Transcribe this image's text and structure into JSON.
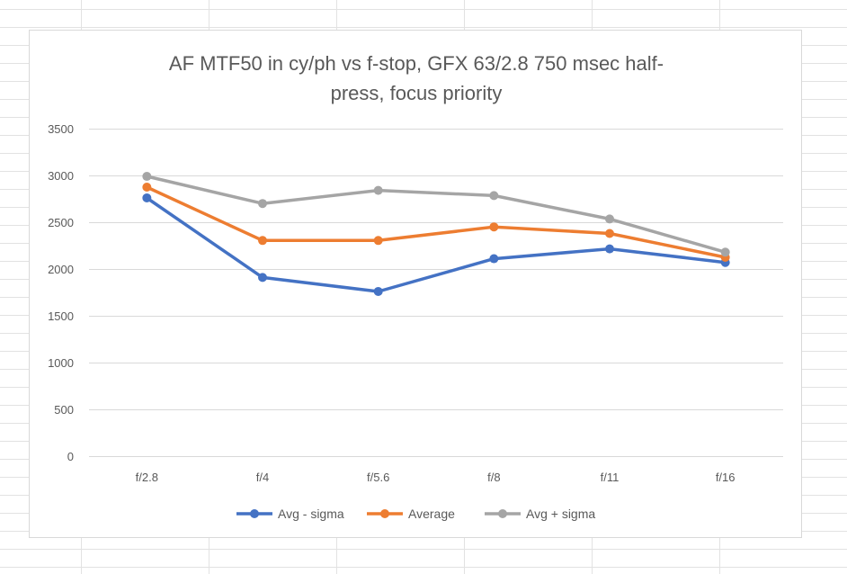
{
  "chart_data": {
    "type": "line",
    "title": "AF MTF50 in cy/ph vs f-stop, GFX 63/2.8 750 msec half-press, focus priority",
    "title_lines": [
      "AF MTF50 in cy/ph vs f-stop, GFX 63/2.8 750 msec half-",
      "press, focus priority"
    ],
    "categories": [
      "f/2.8",
      "f/4",
      "f/5.6",
      "f/8",
      "f/11",
      "f/16"
    ],
    "ylim": [
      0,
      3500
    ],
    "yticks": [
      "0",
      "500",
      "1000",
      "1500",
      "2000",
      "2500",
      "3000",
      "3500"
    ],
    "grid": true,
    "legend_position": "bottom",
    "series": [
      {
        "name": "Avg - sigma",
        "color": "#4472c4",
        "values": [
          2760,
          1910,
          1760,
          2110,
          2215,
          2070
        ]
      },
      {
        "name": "Average",
        "color": "#ed7d31",
        "values": [
          2875,
          2305,
          2305,
          2450,
          2380,
          2125
        ]
      },
      {
        "name": "Avg + sigma",
        "color": "#a5a5a5",
        "values": [
          2990,
          2700,
          2840,
          2785,
          2535,
          2180
        ]
      }
    ]
  }
}
